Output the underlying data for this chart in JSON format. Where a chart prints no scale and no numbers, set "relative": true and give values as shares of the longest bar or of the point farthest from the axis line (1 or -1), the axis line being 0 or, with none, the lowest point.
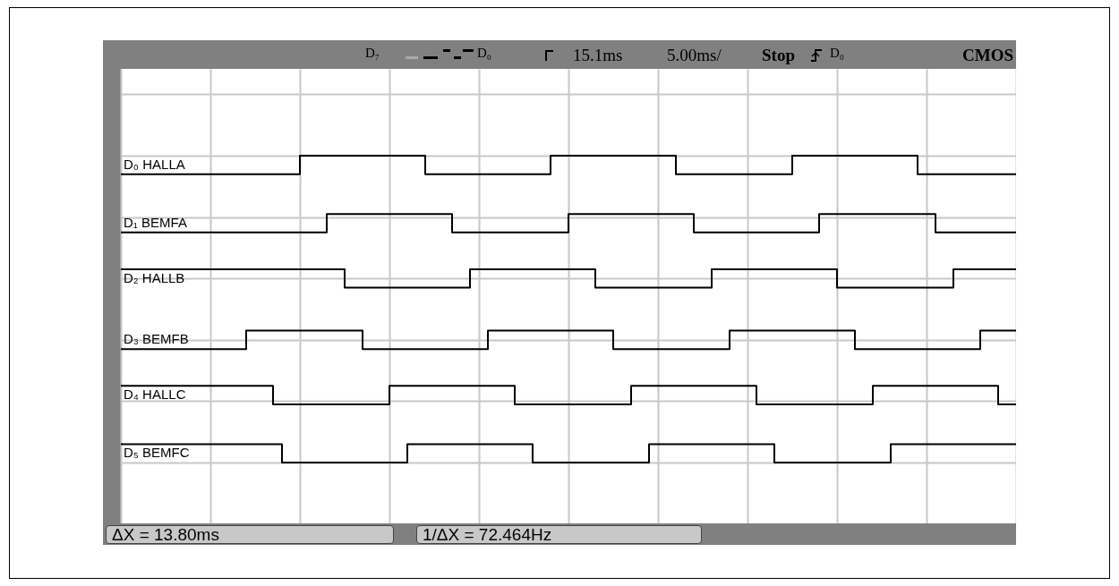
{
  "chart_data": {
    "type": "step",
    "relative": true,
    "grid": true,
    "categories": [
      null,
      null,
      null,
      null,
      null,
      null,
      null,
      null,
      null,
      null,
      null,
      null,
      null,
      null,
      null,
      null,
      null,
      null,
      null,
      null,
      null,
      null,
      null,
      null,
      null,
      null,
      null,
      null,
      null,
      null,
      null,
      null,
      null,
      null,
      null,
      null,
      null,
      null,
      null,
      null,
      null,
      null,
      null,
      null,
      null,
      null,
      null,
      null,
      null,
      null,
      null,
      null,
      null,
      null,
      null,
      null,
      null,
      null,
      null,
      null,
      null,
      null,
      null,
      null,
      null,
      null,
      null,
      null,
      null,
      null,
      null,
      null,
      null,
      null,
      null,
      null,
      null,
      null,
      null,
      null,
      null,
      null,
      null,
      null,
      null,
      null,
      null,
      null,
      null,
      null,
      null,
      null,
      null,
      null,
      null,
      null,
      null,
      null,
      null,
      null,
      null
    ],
    "series": [
      {
        "name": "D₀ HALLA",
        "color": "#000000",
        "values": [
          0.94,
          0.94,
          0.94,
          0.94,
          0.94,
          0.94,
          0.94,
          0.94,
          0.94,
          0.94,
          0.94,
          0.94,
          0.94,
          0.94,
          0.94,
          0.94,
          0.94,
          0.94,
          0.94,
          0.94,
          1,
          1,
          1,
          1,
          1,
          1,
          1,
          1,
          1,
          1,
          1,
          1,
          1,
          1,
          0.94,
          0.94,
          0.94,
          0.94,
          0.94,
          0.94,
          0.94,
          0.94,
          0.94,
          0.94,
          0.94,
          0.94,
          0.94,
          0.94,
          1,
          1,
          1,
          1,
          1,
          1,
          1,
          1,
          1,
          1,
          1,
          1,
          1,
          1,
          0.94,
          0.94,
          0.94,
          0.94,
          0.94,
          0.94,
          0.94,
          0.94,
          0.94,
          0.94,
          0.94,
          0.94,
          0.94,
          1,
          1,
          1,
          1,
          1,
          1,
          1,
          1,
          1,
          1,
          1,
          1,
          1,
          1,
          0.94,
          0.94,
          0.94,
          0.94,
          0.94,
          0.94,
          0.94,
          0.94,
          0.94,
          0.94,
          0.94,
          0.94
        ]
      },
      {
        "name": "D₁ BEMFA",
        "color": "#000000",
        "values": [
          0.75,
          0.75,
          0.75,
          0.75,
          0.75,
          0.75,
          0.75,
          0.75,
          0.75,
          0.75,
          0.75,
          0.75,
          0.75,
          0.75,
          0.75,
          0.75,
          0.75,
          0.75,
          0.75,
          0.75,
          0.75,
          0.75,
          0.75,
          0.81,
          0.81,
          0.81,
          0.81,
          0.81,
          0.81,
          0.81,
          0.81,
          0.81,
          0.81,
          0.81,
          0.81,
          0.81,
          0.81,
          0.75,
          0.75,
          0.75,
          0.75,
          0.75,
          0.75,
          0.75,
          0.75,
          0.75,
          0.75,
          0.75,
          0.75,
          0.75,
          0.81,
          0.81,
          0.81,
          0.81,
          0.81,
          0.81,
          0.81,
          0.81,
          0.81,
          0.81,
          0.81,
          0.81,
          0.81,
          0.81,
          0.75,
          0.75,
          0.75,
          0.75,
          0.75,
          0.75,
          0.75,
          0.75,
          0.75,
          0.75,
          0.75,
          0.75,
          0.75,
          0.75,
          0.81,
          0.81,
          0.81,
          0.81,
          0.81,
          0.81,
          0.81,
          0.81,
          0.81,
          0.81,
          0.81,
          0.81,
          0.81,
          0.75,
          0.75,
          0.75,
          0.75,
          0.75,
          0.75,
          0.75,
          0.75,
          0.75,
          0.75
        ]
      },
      {
        "name": "D₂ HALLB",
        "color": "#000000",
        "values": [
          0.63,
          0.63,
          0.63,
          0.63,
          0.63,
          0.63,
          0.63,
          0.63,
          0.63,
          0.63,
          0.63,
          0.63,
          0.63,
          0.63,
          0.63,
          0.63,
          0.63,
          0.63,
          0.63,
          0.63,
          0.63,
          0.63,
          0.63,
          0.63,
          0.63,
          0.57,
          0.57,
          0.57,
          0.57,
          0.57,
          0.57,
          0.57,
          0.57,
          0.57,
          0.57,
          0.57,
          0.57,
          0.57,
          0.57,
          0.63,
          0.63,
          0.63,
          0.63,
          0.63,
          0.63,
          0.63,
          0.63,
          0.63,
          0.63,
          0.63,
          0.63,
          0.63,
          0.63,
          0.57,
          0.57,
          0.57,
          0.57,
          0.57,
          0.57,
          0.57,
          0.57,
          0.57,
          0.57,
          0.57,
          0.57,
          0.57,
          0.63,
          0.63,
          0.63,
          0.63,
          0.63,
          0.63,
          0.63,
          0.63,
          0.63,
          0.63,
          0.63,
          0.63,
          0.63,
          0.63,
          0.57,
          0.57,
          0.57,
          0.57,
          0.57,
          0.57,
          0.57,
          0.57,
          0.57,
          0.57,
          0.57,
          0.57,
          0.57,
          0.63,
          0.63,
          0.63,
          0.63,
          0.63,
          0.63,
          0.63,
          0.63
        ]
      },
      {
        "name": "D₃ BEMFB",
        "color": "#000000",
        "values": [
          0.37,
          0.37,
          0.37,
          0.37,
          0.37,
          0.37,
          0.37,
          0.37,
          0.37,
          0.37,
          0.37,
          0.37,
          0.37,
          0.37,
          0.43,
          0.43,
          0.43,
          0.43,
          0.43,
          0.43,
          0.43,
          0.43,
          0.43,
          0.43,
          0.43,
          0.43,
          0.43,
          0.37,
          0.37,
          0.37,
          0.37,
          0.37,
          0.37,
          0.37,
          0.37,
          0.37,
          0.37,
          0.37,
          0.37,
          0.37,
          0.37,
          0.43,
          0.43,
          0.43,
          0.43,
          0.43,
          0.43,
          0.43,
          0.43,
          0.43,
          0.43,
          0.43,
          0.43,
          0.43,
          0.43,
          0.37,
          0.37,
          0.37,
          0.37,
          0.37,
          0.37,
          0.37,
          0.37,
          0.37,
          0.37,
          0.37,
          0.37,
          0.37,
          0.43,
          0.43,
          0.43,
          0.43,
          0.43,
          0.43,
          0.43,
          0.43,
          0.43,
          0.43,
          0.43,
          0.43,
          0.43,
          0.43,
          0.37,
          0.37,
          0.37,
          0.37,
          0.37,
          0.37,
          0.37,
          0.37,
          0.37,
          0.37,
          0.37,
          0.37,
          0.37,
          0.37,
          0.43,
          0.43,
          0.43,
          0.43,
          0.43
        ]
      },
      {
        "name": "D₄ HALLC",
        "color": "#000000",
        "values": [
          0.25,
          0.25,
          0.25,
          0.25,
          0.25,
          0.25,
          0.25,
          0.25,
          0.25,
          0.25,
          0.25,
          0.25,
          0.25,
          0.25,
          0.25,
          0.25,
          0.25,
          0.19,
          0.19,
          0.19,
          0.19,
          0.19,
          0.19,
          0.19,
          0.19,
          0.19,
          0.19,
          0.19,
          0.19,
          0.19,
          0.25,
          0.25,
          0.25,
          0.25,
          0.25,
          0.25,
          0.25,
          0.25,
          0.25,
          0.25,
          0.25,
          0.25,
          0.25,
          0.25,
          0.19,
          0.19,
          0.19,
          0.19,
          0.19,
          0.19,
          0.19,
          0.19,
          0.19,
          0.19,
          0.19,
          0.19,
          0.19,
          0.25,
          0.25,
          0.25,
          0.25,
          0.25,
          0.25,
          0.25,
          0.25,
          0.25,
          0.25,
          0.25,
          0.25,
          0.25,
          0.25,
          0.19,
          0.19,
          0.19,
          0.19,
          0.19,
          0.19,
          0.19,
          0.19,
          0.19,
          0.19,
          0.19,
          0.19,
          0.19,
          0.25,
          0.25,
          0.25,
          0.25,
          0.25,
          0.25,
          0.25,
          0.25,
          0.25,
          0.25,
          0.25,
          0.25,
          0.25,
          0.25,
          0.19,
          0.19,
          0.19
        ]
      },
      {
        "name": "D₅ BEMFC",
        "color": "#000000",
        "values": [
          0.06,
          0.06,
          0.06,
          0.06,
          0.06,
          0.06,
          0.06,
          0.06,
          0.06,
          0.06,
          0.06,
          0.06,
          0.06,
          0.06,
          0.06,
          0.06,
          0.06,
          0.06,
          0,
          0,
          0,
          0,
          0,
          0,
          0,
          0,
          0,
          0,
          0,
          0,
          0,
          0,
          0.06,
          0.06,
          0.06,
          0.06,
          0.06,
          0.06,
          0.06,
          0.06,
          0.06,
          0.06,
          0.06,
          0.06,
          0.06,
          0.06,
          0,
          0,
          0,
          0,
          0,
          0,
          0,
          0,
          0,
          0,
          0,
          0,
          0,
          0.06,
          0.06,
          0.06,
          0.06,
          0.06,
          0.06,
          0.06,
          0.06,
          0.06,
          0.06,
          0.06,
          0.06,
          0.06,
          0.06,
          0,
          0,
          0,
          0,
          0,
          0,
          0,
          0,
          0,
          0,
          0,
          0,
          0,
          0.06,
          0.06,
          0.06,
          0.06,
          0.06,
          0.06,
          0.06,
          0.06,
          0.06,
          0.06,
          0.06,
          0.06,
          0.06,
          0.06,
          0.06
        ]
      }
    ],
    "annotations": [
      "D₇",
      "D₀",
      "15.1ms",
      "5.00ms/",
      "Stop",
      "D₀",
      "CMOS",
      "ΔX = 13.80ms",
      "1/ΔX = 72.464Hz"
    ]
  }
}
